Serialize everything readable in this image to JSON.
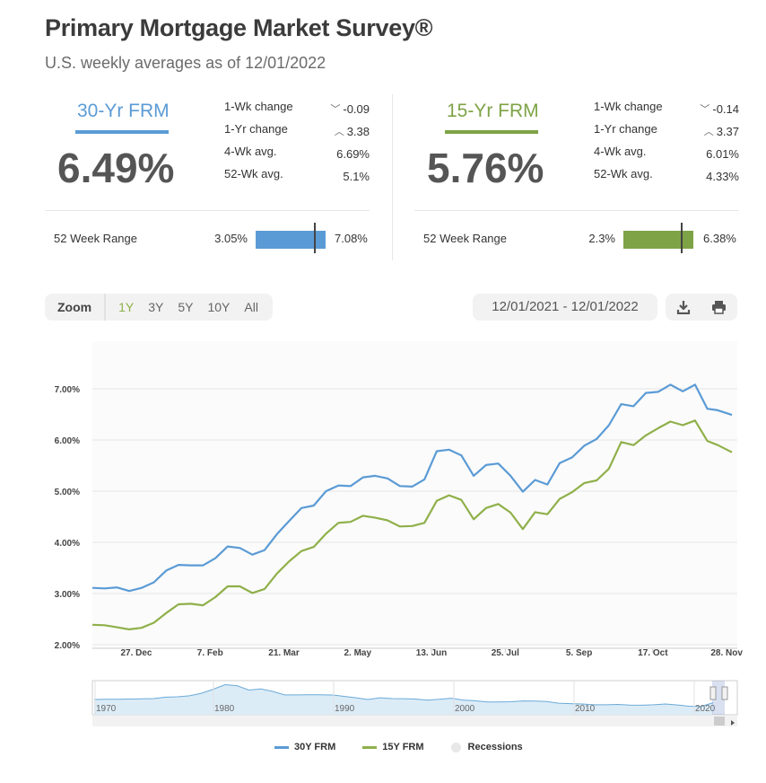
{
  "header": {
    "title": "Primary Mortgage Market Survey®",
    "subtitle": "U.S. weekly averages as of 12/01/2022"
  },
  "cards": [
    {
      "name": "30-Yr FRM",
      "color": "#5b9bd5",
      "rate": "6.49%",
      "stats": [
        {
          "label": "1-Wk change",
          "arrow": "down",
          "value": "-0.09"
        },
        {
          "label": "1-Yr change",
          "arrow": "up",
          "value": "3.38"
        },
        {
          "label": "4-Wk avg.",
          "arrow": "",
          "value": "6.69%"
        },
        {
          "label": "52-Wk avg.",
          "arrow": "",
          "value": "5.1%"
        }
      ],
      "range_label": "52 Week Range",
      "range_min": "3.05%",
      "range_max": "7.08%",
      "range_position": 0.85
    },
    {
      "name": "15-Yr FRM",
      "color": "#7ea346",
      "rate": "5.76%",
      "stats": [
        {
          "label": "1-Wk change",
          "arrow": "down",
          "value": "-0.14"
        },
        {
          "label": "1-Yr change",
          "arrow": "up",
          "value": "3.37"
        },
        {
          "label": "4-Wk avg.",
          "arrow": "",
          "value": "6.01%"
        },
        {
          "label": "52-Wk avg.",
          "arrow": "",
          "value": "4.33%"
        }
      ],
      "range_label": "52 Week Range",
      "range_min": "2.3%",
      "range_max": "6.38%",
      "range_position": 0.85
    }
  ],
  "toolbar": {
    "zoom_label": "Zoom",
    "zoom_options": [
      "1Y",
      "3Y",
      "5Y",
      "10Y",
      "All"
    ],
    "zoom_selected": "1Y",
    "date_range": "12/01/2021 - 12/01/2022",
    "icons": [
      "download-icon",
      "print-icon"
    ]
  },
  "chart_data": {
    "type": "line",
    "title": "",
    "xlabel": "",
    "ylabel": "",
    "y_tick_labels": [
      "2.00%",
      "3.00%",
      "4.00%",
      "5.00%",
      "6.00%",
      "7.00%"
    ],
    "ylim": [
      2.0,
      8.0
    ],
    "x_tick_labels": [
      "27. Dec",
      "7. Feb",
      "21. Mar",
      "2. May",
      "13. Jun",
      "25. Jul",
      "5. Sep",
      "17. Oct",
      "28. Nov"
    ],
    "x": [
      "2021-12-02",
      "2021-12-09",
      "2021-12-16",
      "2021-12-23",
      "2021-12-30",
      "2022-01-06",
      "2022-01-13",
      "2022-01-20",
      "2022-01-27",
      "2022-02-03",
      "2022-02-10",
      "2022-02-17",
      "2022-02-24",
      "2022-03-03",
      "2022-03-10",
      "2022-03-17",
      "2022-03-24",
      "2022-03-31",
      "2022-04-07",
      "2022-04-14",
      "2022-04-21",
      "2022-04-28",
      "2022-05-05",
      "2022-05-12",
      "2022-05-19",
      "2022-05-26",
      "2022-06-02",
      "2022-06-09",
      "2022-06-16",
      "2022-06-23",
      "2022-06-30",
      "2022-07-07",
      "2022-07-14",
      "2022-07-21",
      "2022-07-28",
      "2022-08-04",
      "2022-08-11",
      "2022-08-18",
      "2022-08-25",
      "2022-09-01",
      "2022-09-08",
      "2022-09-15",
      "2022-09-22",
      "2022-09-29",
      "2022-10-06",
      "2022-10-13",
      "2022-10-20",
      "2022-10-27",
      "2022-11-03",
      "2022-11-10",
      "2022-11-17",
      "2022-11-23",
      "2022-12-01"
    ],
    "series": [
      {
        "name": "30Y FRM",
        "color": "#5b9bd5",
        "values": [
          3.11,
          3.1,
          3.12,
          3.05,
          3.11,
          3.22,
          3.45,
          3.56,
          3.55,
          3.55,
          3.69,
          3.92,
          3.89,
          3.76,
          3.85,
          4.16,
          4.42,
          4.67,
          4.72,
          5.0,
          5.11,
          5.1,
          5.27,
          5.3,
          5.25,
          5.1,
          5.09,
          5.23,
          5.78,
          5.81,
          5.7,
          5.3,
          5.51,
          5.54,
          5.3,
          4.99,
          5.22,
          5.13,
          5.55,
          5.66,
          5.89,
          6.02,
          6.29,
          6.7,
          6.66,
          6.92,
          6.94,
          7.08,
          6.95,
          7.08,
          6.61,
          6.58,
          6.49
        ]
      },
      {
        "name": "15Y FRM",
        "color": "#8fb04a",
        "values": [
          2.39,
          2.38,
          2.34,
          2.3,
          2.33,
          2.43,
          2.62,
          2.79,
          2.8,
          2.77,
          2.93,
          3.14,
          3.14,
          3.01,
          3.09,
          3.39,
          3.63,
          3.83,
          3.91,
          4.17,
          4.38,
          4.4,
          4.52,
          4.48,
          4.43,
          4.31,
          4.32,
          4.38,
          4.81,
          4.92,
          4.83,
          4.45,
          4.67,
          4.75,
          4.58,
          4.26,
          4.59,
          4.55,
          4.85,
          4.98,
          5.16,
          5.21,
          5.44,
          5.96,
          5.9,
          6.09,
          6.23,
          6.36,
          6.29,
          6.38,
          5.98,
          5.9,
          5.76
        ]
      }
    ],
    "navigator_labels": [
      "1970",
      "1980",
      "1990",
      "2000",
      "2010",
      "2020"
    ],
    "navigator_values": [
      7.3,
      7.4,
      7.5,
      7.6,
      7.7,
      7.9,
      8.8,
      9.0,
      9.6,
      11.2,
      13.7,
      16.6,
      16.0,
      13.2,
      13.9,
      12.4,
      10.2,
      10.2,
      10.3,
      10.3,
      10.1,
      9.3,
      8.4,
      7.3,
      8.4,
      7.9,
      7.8,
      7.6,
      6.9,
      7.4,
      8.1,
      7.0,
      6.5,
      5.8,
      5.8,
      5.9,
      6.4,
      6.3,
      6.0,
      5.0,
      4.7,
      4.5,
      4.0,
      4.0,
      4.2,
      3.8,
      3.7,
      4.0,
      4.5,
      3.9,
      3.1,
      3.0,
      5.3
    ],
    "legend": [
      "30Y FRM",
      "15Y FRM",
      "Recessions"
    ],
    "legend_colors": [
      "#5b9bd5",
      "#8fb04a",
      "#e8e8e8"
    ],
    "grid": true,
    "legend_position": "bottom"
  }
}
